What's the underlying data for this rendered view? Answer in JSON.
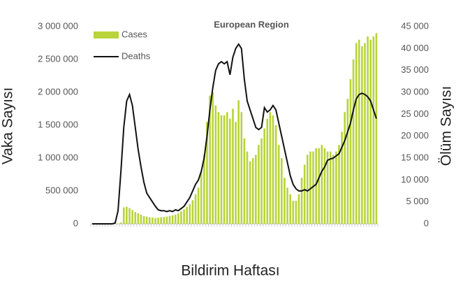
{
  "chart_data": {
    "type": "bar-line",
    "title": "European Region",
    "x_label": "Bildirim Haftası",
    "y_label": "Vaka Sayısı",
    "y2_label": "Ölüm Sayısı",
    "legend": "top-left",
    "categories": [
      null,
      null,
      null,
      null,
      null,
      null,
      null,
      null,
      null,
      null,
      null,
      null,
      null,
      null,
      null,
      null,
      null,
      null,
      null,
      null,
      null,
      null,
      null,
      null,
      null,
      null,
      null,
      null,
      null,
      null,
      null,
      null,
      null,
      null,
      null,
      null,
      null,
      null,
      null,
      null,
      null,
      null,
      null,
      null,
      null,
      null,
      null,
      null,
      null,
      null,
      null,
      null,
      null,
      null,
      null,
      null,
      null,
      null,
      null,
      null,
      null,
      null,
      null,
      null,
      null,
      null,
      null,
      null,
      null,
      null,
      null,
      null,
      null,
      null,
      null,
      null,
      null,
      null,
      null,
      null,
      null,
      null,
      null,
      null,
      null,
      null,
      null,
      null,
      null,
      null,
      null,
      null,
      null,
      null,
      null,
      null,
      null,
      null,
      null,
      null
    ],
    "series": [
      {
        "name": "Cases",
        "type": "bar",
        "color": "#b8d43a",
        "values": [
          0,
          0,
          0,
          0,
          0,
          0,
          0,
          0,
          0,
          5000,
          20000,
          250000,
          260000,
          240000,
          210000,
          180000,
          160000,
          140000,
          120000,
          110000,
          100000,
          95000,
          90000,
          95000,
          100000,
          105000,
          110000,
          120000,
          130000,
          140000,
          160000,
          190000,
          220000,
          260000,
          300000,
          360000,
          450000,
          550000,
          800000,
          1050000,
          1550000,
          1950000,
          2000000,
          1800000,
          1700000,
          1650000,
          1650000,
          1700000,
          1600000,
          1750000,
          1550000,
          1880000,
          1700000,
          1300000,
          1100000,
          950000,
          1000000,
          1050000,
          1200000,
          1300000,
          1450000,
          1600000,
          1700000,
          1650000,
          1500000,
          1200000,
          1000000,
          700000,
          550000,
          450000,
          350000,
          350000,
          450000,
          700000,
          900000,
          1050000,
          1100000,
          1100000,
          1150000,
          1150000,
          1200000,
          1150000,
          1100000,
          1100000,
          1050000,
          1100000,
          1200000,
          1400000,
          1700000,
          1900000,
          2200000,
          2500000,
          2750000,
          2800000,
          2700000,
          2750000,
          2850000,
          2800000,
          2850000,
          2900000
        ]
      },
      {
        "name": "Deaths",
        "type": "line",
        "axis": "y2",
        "color": "#111111",
        "values": [
          0,
          0,
          0,
          0,
          0,
          0,
          0,
          0,
          200,
          3000,
          12000,
          22000,
          28000,
          29500,
          27000,
          22000,
          17000,
          13000,
          9500,
          7000,
          6000,
          5000,
          4000,
          3200,
          3000,
          3000,
          2800,
          3000,
          2800,
          3200,
          3000,
          3500,
          4000,
          5000,
          6000,
          7500,
          9000,
          10000,
          12000,
          15000,
          20000,
          26000,
          31000,
          35000,
          36500,
          37000,
          36500,
          37000,
          34000,
          38000,
          40000,
          41000,
          40000,
          33000,
          28000,
          26000,
          24000,
          22000,
          21500,
          22000,
          26500,
          25500,
          26000,
          27000,
          26000,
          23000,
          20000,
          17000,
          14000,
          11000,
          9000,
          8000,
          7500,
          7500,
          7800,
          7500,
          8000,
          8500,
          9000,
          10500,
          12000,
          13000,
          14500,
          14800,
          15000,
          15500,
          16000,
          17500,
          19000,
          21000,
          23000,
          26000,
          28500,
          29500,
          29800,
          29500,
          29000,
          28000,
          26000,
          24000
        ]
      }
    ],
    "ylim": [
      0,
      3000000
    ],
    "yticks": [
      0,
      {
        "value": 500000,
        "label": "500 000"
      },
      {
        "value": 1000000,
        "label": "1 000 000"
      },
      {
        "value": 1500000,
        "label": "1 500 000"
      },
      {
        "value": 2000000,
        "label": "2 000 000"
      },
      {
        "value": 2500000,
        "label": "2 500 000"
      },
      {
        "value": 3000000,
        "label": "3 000 000"
      }
    ],
    "y2lim": [
      0,
      45000
    ],
    "y2ticks": [
      0,
      {
        "value": 5000,
        "label": "5 000"
      },
      {
        "value": 10000,
        "label": "10 000"
      },
      {
        "value": 15000,
        "label": "15 000"
      },
      {
        "value": 20000,
        "label": "20 000"
      },
      {
        "value": 25000,
        "label": "25 000"
      },
      {
        "value": 30000,
        "label": "30 000"
      },
      {
        "value": 35000,
        "label": "35 000"
      },
      {
        "value": 40000,
        "label": "40 000"
      },
      {
        "value": 45000,
        "label": "45 000"
      }
    ]
  }
}
